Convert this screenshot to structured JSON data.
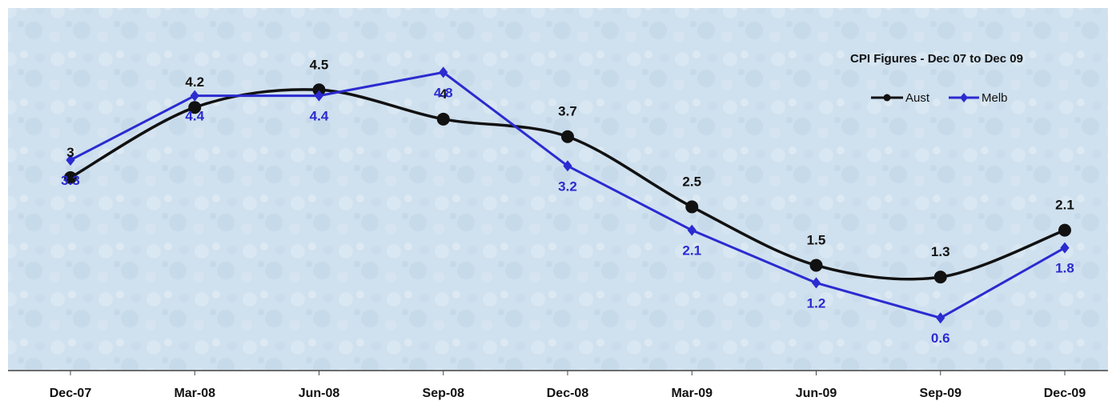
{
  "chart_data": {
    "type": "line",
    "title": "CPI Figures - Dec 07  to Dec 09",
    "categories": [
      "Dec-07",
      "Mar-08",
      "Jun-08",
      "Sep-08",
      "Dec-08",
      "Mar-09",
      "Jun-09",
      "Sep-09",
      "Dec-09"
    ],
    "series": [
      {
        "name": "Aust",
        "color": "#111111",
        "marker": "circle",
        "label_position": "above",
        "values": [
          3.0,
          4.2,
          4.5,
          4.0,
          3.7,
          2.5,
          1.5,
          1.3,
          2.1
        ],
        "labels": [
          "3",
          "4.2",
          "4.5",
          "4",
          "3.7",
          "2.5",
          "1.5",
          "1.3",
          "2.1"
        ]
      },
      {
        "name": "Melb",
        "color": "#2b2bd0",
        "marker": "diamond",
        "label_position": "below",
        "values": [
          3.3,
          4.4,
          4.4,
          4.8,
          3.2,
          2.1,
          1.2,
          0.6,
          1.8
        ],
        "labels": [
          "3.3",
          "4.4",
          "4.4",
          "4.8",
          "3.2",
          "2.1",
          "1.2",
          "0.6",
          "1.8"
        ]
      }
    ],
    "ylim": [
      -0.3,
      5.9
    ],
    "xlabel": "",
    "ylabel": "",
    "grid": false,
    "legend_position": "top-right",
    "plot_background": "#cfe0ee"
  }
}
